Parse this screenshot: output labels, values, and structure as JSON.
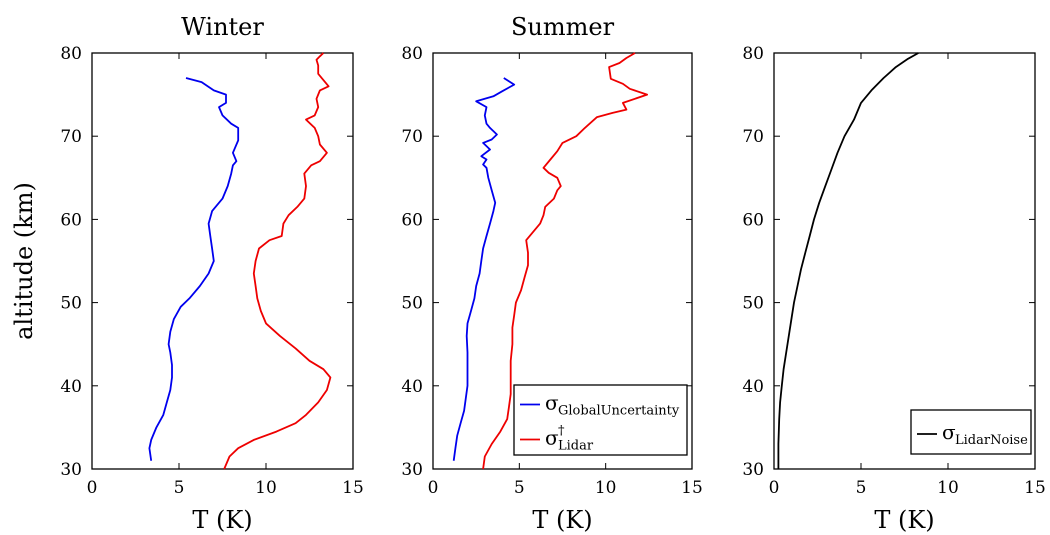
{
  "chart_data": [
    {
      "type": "line",
      "title": "Winter",
      "xlabel": "T (K)",
      "ylabel": "altitude (km)",
      "xlim": [
        0,
        15
      ],
      "ylim": [
        30,
        80
      ],
      "xticks": [
        "0",
        "5",
        "10",
        "15"
      ],
      "yticks": [
        "30",
        "40",
        "50",
        "60",
        "70",
        "80"
      ],
      "series": [
        {
          "color": "#0000ee",
          "points": [
            [
              3.4,
              31
            ],
            [
              3.3,
              32.5
            ],
            [
              3.4,
              33.5
            ],
            [
              3.7,
              35
            ],
            [
              4.1,
              36.5
            ],
            [
              4.3,
              38
            ],
            [
              4.5,
              39.5
            ],
            [
              4.6,
              41
            ],
            [
              4.6,
              42.5
            ],
            [
              4.5,
              44
            ],
            [
              4.4,
              45
            ],
            [
              4.5,
              46.5
            ],
            [
              4.7,
              48
            ],
            [
              5.1,
              49.5
            ],
            [
              5.6,
              50.5
            ],
            [
              6.2,
              52
            ],
            [
              6.7,
              53.5
            ],
            [
              7.0,
              55
            ],
            [
              6.9,
              56.5
            ],
            [
              6.8,
              58
            ],
            [
              6.7,
              59.5
            ],
            [
              6.9,
              61
            ],
            [
              7.5,
              62.5
            ],
            [
              7.8,
              64
            ],
            [
              8.0,
              65.5
            ],
            [
              8.1,
              66.5
            ],
            [
              8.3,
              67
            ],
            [
              8.1,
              68
            ],
            [
              8.4,
              69.5
            ],
            [
              8.4,
              71
            ],
            [
              8.0,
              71.5
            ],
            [
              7.5,
              72.5
            ],
            [
              7.3,
              73.5
            ],
            [
              7.7,
              74
            ],
            [
              7.7,
              75
            ],
            [
              7.0,
              75.5
            ],
            [
              6.3,
              76.5
            ],
            [
              5.4,
              77
            ]
          ]
        },
        {
          "color": "#ee0000",
          "points": [
            [
              7.6,
              30
            ],
            [
              7.9,
              31.5
            ],
            [
              8.4,
              32.5
            ],
            [
              9.3,
              33.5
            ],
            [
              10.6,
              34.5
            ],
            [
              11.7,
              35.5
            ],
            [
              12.3,
              36.5
            ],
            [
              13.0,
              38
            ],
            [
              13.5,
              39.5
            ],
            [
              13.7,
              41
            ],
            [
              13.3,
              42
            ],
            [
              12.5,
              43
            ],
            [
              11.7,
              44.5
            ],
            [
              10.8,
              46
            ],
            [
              10.0,
              47.5
            ],
            [
              9.7,
              49
            ],
            [
              9.5,
              50.5
            ],
            [
              9.4,
              52
            ],
            [
              9.3,
              53.5
            ],
            [
              9.4,
              55
            ],
            [
              9.6,
              56.5
            ],
            [
              10.2,
              57.5
            ],
            [
              10.9,
              58
            ],
            [
              11.0,
              59.5
            ],
            [
              11.3,
              60.5
            ],
            [
              11.8,
              61.5
            ],
            [
              12.2,
              62.5
            ],
            [
              12.3,
              64
            ],
            [
              12.2,
              65.5
            ],
            [
              12.6,
              66.5
            ],
            [
              13.1,
              67
            ],
            [
              13.5,
              68
            ],
            [
              13.1,
              69
            ],
            [
              13.0,
              70
            ],
            [
              12.8,
              71
            ],
            [
              12.3,
              72
            ],
            [
              12.8,
              72.5
            ],
            [
              13.0,
              73.5
            ],
            [
              12.9,
              74.5
            ],
            [
              13.1,
              75.5
            ],
            [
              13.6,
              76
            ],
            [
              13.0,
              77.5
            ],
            [
              13.0,
              78.5
            ],
            [
              12.9,
              79.2
            ],
            [
              13.1,
              79.6
            ],
            [
              13.3,
              80
            ]
          ]
        }
      ]
    },
    {
      "type": "line",
      "title": "Summer",
      "xlabel": "T (K)",
      "ylabel": "",
      "xlim": [
        0,
        15
      ],
      "ylim": [
        30,
        80
      ],
      "xticks": [
        "0",
        "5",
        "10",
        "15"
      ],
      "yticks": [
        "30",
        "40",
        "50",
        "60",
        "70",
        "80"
      ],
      "legend": {
        "position": "bottom-right",
        "entries": [
          {
            "color": "#0000ee",
            "symbol": "σ",
            "sub": "GlobalUncertainty",
            "sup": ""
          },
          {
            "color": "#ee0000",
            "symbol": "σ",
            "sub": "Lidar",
            "sup": "†"
          }
        ]
      },
      "series": [
        {
          "color": "#0000ee",
          "points": [
            [
              1.2,
              31
            ],
            [
              1.3,
              32.5
            ],
            [
              1.4,
              34
            ],
            [
              1.6,
              35.5
            ],
            [
              1.8,
              37
            ],
            [
              1.9,
              38.5
            ],
            [
              2.0,
              40
            ],
            [
              2.0,
              42
            ],
            [
              2.0,
              44
            ],
            [
              1.95,
              46
            ],
            [
              2.0,
              47.5
            ],
            [
              2.2,
              49
            ],
            [
              2.4,
              50.5
            ],
            [
              2.5,
              52
            ],
            [
              2.7,
              53.5
            ],
            [
              2.8,
              55
            ],
            [
              2.9,
              56.5
            ],
            [
              3.1,
              58
            ],
            [
              3.3,
              59.5
            ],
            [
              3.5,
              61
            ],
            [
              3.6,
              62
            ],
            [
              3.4,
              63.5
            ],
            [
              3.2,
              65
            ],
            [
              3.1,
              66.2
            ],
            [
              2.9,
              66.6
            ],
            [
              3.1,
              67.2
            ],
            [
              2.8,
              67.6
            ],
            [
              3.3,
              68.4
            ],
            [
              2.9,
              69.2
            ],
            [
              3.4,
              69.6
            ],
            [
              3.7,
              70.2
            ],
            [
              3.3,
              71
            ],
            [
              3.1,
              71.5
            ],
            [
              3.0,
              72.5
            ],
            [
              3.1,
              73.5
            ],
            [
              2.5,
              74.2
            ],
            [
              3.5,
              74.8
            ],
            [
              4.0,
              75.4
            ],
            [
              4.7,
              76.2
            ],
            [
              4.1,
              77
            ]
          ]
        },
        {
          "color": "#ee0000",
          "points": [
            [
              2.9,
              30
            ],
            [
              3.0,
              31.5
            ],
            [
              3.4,
              33
            ],
            [
              3.9,
              34.5
            ],
            [
              4.3,
              36
            ],
            [
              4.4,
              37.5
            ],
            [
              4.5,
              39
            ],
            [
              4.5,
              41
            ],
            [
              4.5,
              43
            ],
            [
              4.6,
              45
            ],
            [
              4.6,
              47
            ],
            [
              4.7,
              48.5
            ],
            [
              4.8,
              50
            ],
            [
              5.1,
              51.5
            ],
            [
              5.3,
              53
            ],
            [
              5.5,
              54.5
            ],
            [
              5.5,
              56
            ],
            [
              5.4,
              57.5
            ],
            [
              5.8,
              58.5
            ],
            [
              6.2,
              59.5
            ],
            [
              6.4,
              60.5
            ],
            [
              6.5,
              61.5
            ],
            [
              7.0,
              62.5
            ],
            [
              7.2,
              63.5
            ],
            [
              7.4,
              64
            ],
            [
              7.2,
              65
            ],
            [
              6.7,
              65.6
            ],
            [
              6.4,
              66.2
            ],
            [
              6.8,
              67.2
            ],
            [
              7.2,
              68.2
            ],
            [
              7.5,
              69.2
            ],
            [
              8.3,
              70
            ],
            [
              8.8,
              71
            ],
            [
              9.5,
              72.3
            ],
            [
              10.4,
              72.8
            ],
            [
              11.2,
              73.2
            ],
            [
              11.0,
              74
            ],
            [
              12.4,
              75
            ],
            [
              11.4,
              75.7
            ],
            [
              11.0,
              76.3
            ],
            [
              10.3,
              76.9
            ],
            [
              10.2,
              78.3
            ],
            [
              10.8,
              78.8
            ],
            [
              11.2,
              79.4
            ],
            [
              11.7,
              80
            ]
          ]
        }
      ]
    },
    {
      "type": "line",
      "title": "",
      "xlabel": "T (K)",
      "ylabel": "",
      "xlim": [
        0,
        15
      ],
      "ylim": [
        30,
        80
      ],
      "xticks": [
        "0",
        "5",
        "10",
        "15"
      ],
      "yticks": [
        "30",
        "40",
        "50",
        "60",
        "70",
        "80"
      ],
      "legend": {
        "position": "bottom-right",
        "entries": [
          {
            "color": "#000000",
            "symbol": "σ",
            "sub": "LidarNoise",
            "sup": ""
          }
        ]
      },
      "series": [
        {
          "color": "#000000",
          "points": [
            [
              0.25,
              30
            ],
            [
              0.25,
              33
            ],
            [
              0.3,
              36
            ],
            [
              0.35,
              38
            ],
            [
              0.45,
              40
            ],
            [
              0.55,
              42
            ],
            [
              0.7,
              44
            ],
            [
              0.85,
              46
            ],
            [
              1.0,
              48
            ],
            [
              1.15,
              50
            ],
            [
              1.35,
              52
            ],
            [
              1.55,
              54
            ],
            [
              1.8,
              56
            ],
            [
              2.05,
              58
            ],
            [
              2.3,
              60
            ],
            [
              2.6,
              62
            ],
            [
              2.95,
              64
            ],
            [
              3.3,
              66
            ],
            [
              3.65,
              68
            ],
            [
              4.05,
              70
            ],
            [
              4.6,
              72
            ],
            [
              5.0,
              74
            ],
            [
              5.6,
              75.5
            ],
            [
              6.3,
              77
            ],
            [
              7.0,
              78.3
            ],
            [
              7.7,
              79.3
            ],
            [
              8.3,
              80
            ]
          ]
        }
      ]
    }
  ]
}
